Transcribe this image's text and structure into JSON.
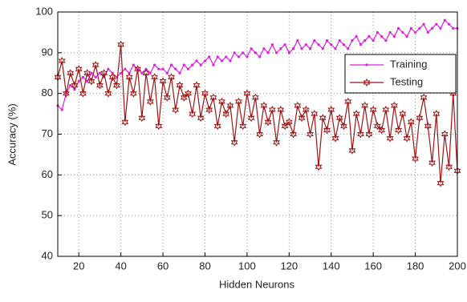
{
  "chart_data": {
    "type": "line",
    "x_label": "Hidden Neurons",
    "y_label": "Accuracy (%)",
    "x": [
      10,
      12,
      14,
      16,
      18,
      20,
      22,
      24,
      26,
      28,
      30,
      32,
      34,
      36,
      38,
      40,
      42,
      44,
      46,
      48,
      50,
      52,
      54,
      56,
      58,
      60,
      62,
      64,
      66,
      68,
      70,
      72,
      74,
      76,
      78,
      80,
      82,
      84,
      86,
      88,
      90,
      92,
      94,
      96,
      98,
      100,
      102,
      104,
      106,
      108,
      110,
      112,
      114,
      116,
      118,
      120,
      122,
      124,
      126,
      128,
      130,
      132,
      134,
      136,
      138,
      140,
      142,
      144,
      146,
      148,
      150,
      152,
      154,
      156,
      158,
      160,
      162,
      164,
      166,
      168,
      170,
      172,
      174,
      176,
      178,
      180,
      182,
      184,
      186,
      188,
      190,
      192,
      194,
      196,
      198,
      200
    ],
    "series": [
      {
        "name": "Training",
        "color": "#e01ee0",
        "marker": "dot",
        "values": [
          77,
          76,
          80,
          82,
          81,
          83,
          84,
          83,
          85,
          84,
          85,
          84,
          86,
          85,
          84,
          85,
          86,
          85,
          87,
          86,
          85,
          86,
          85,
          87,
          86,
          86,
          85,
          87,
          86,
          85,
          87,
          86,
          87,
          88,
          87,
          88,
          89,
          87,
          89,
          88,
          89,
          88,
          90,
          89,
          90,
          89,
          91,
          90,
          89,
          91,
          90,
          92,
          90,
          91,
          92,
          90,
          91,
          93,
          91,
          92,
          91,
          93,
          92,
          91,
          93,
          92,
          91,
          93,
          92,
          91,
          93,
          94,
          92,
          93,
          94,
          93,
          95,
          94,
          93,
          95,
          94,
          96,
          95,
          94,
          96,
          95,
          96,
          97,
          95,
          96,
          97,
          96,
          98,
          97,
          96,
          96
        ]
      },
      {
        "name": "Testing",
        "color": "#a01515",
        "marker": "star",
        "values": [
          84,
          88,
          80,
          85,
          82,
          86,
          80,
          85,
          83,
          87,
          82,
          85,
          80,
          84,
          82,
          92,
          73,
          84,
          80,
          86,
          74,
          85,
          78,
          84,
          72,
          83,
          79,
          84,
          76,
          82,
          79,
          80,
          75,
          82,
          74,
          80,
          76,
          79,
          72,
          78,
          75,
          77,
          68,
          78,
          72,
          80,
          74,
          79,
          70,
          77,
          73,
          76,
          68,
          76,
          72,
          73,
          70,
          77,
          74,
          76,
          70,
          75,
          62,
          74,
          71,
          76,
          69,
          74,
          72,
          78,
          66,
          75,
          70,
          77,
          70,
          76,
          72,
          71,
          76,
          69,
          77,
          71,
          75,
          69,
          73,
          64,
          74,
          79,
          72,
          63,
          75,
          58,
          70,
          62,
          80,
          61
        ]
      }
    ],
    "xlim": [
      10,
      200
    ],
    "xticks": [
      20,
      40,
      60,
      80,
      100,
      120,
      140,
      160,
      180,
      200
    ],
    "ylim": [
      40,
      100
    ],
    "yticks": [
      40,
      50,
      60,
      70,
      80,
      90,
      100
    ],
    "grid": true,
    "legend": "upper right"
  }
}
